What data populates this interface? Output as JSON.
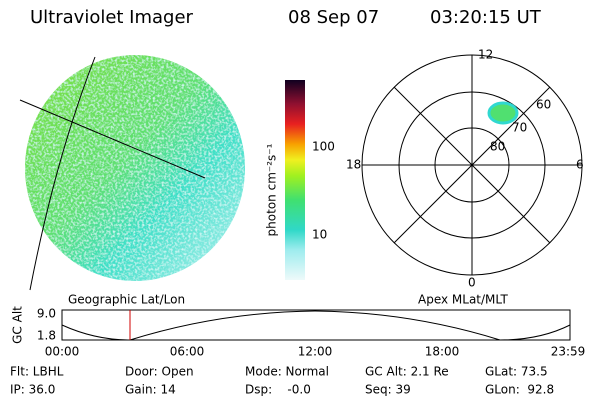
{
  "header": {
    "title": "Ultraviolet Imager",
    "date": "08 Sep 07",
    "time": "03:20:15 UT"
  },
  "colorbar": {
    "label": "photon cm⁻²s⁻¹",
    "ticks": [
      "100",
      "10"
    ]
  },
  "polar": {
    "top": "12",
    "bottom": "0",
    "left": "18",
    "right": "6",
    "rings": [
      "60",
      "70",
      "80"
    ]
  },
  "orbit": {
    "left_title": "Geographic Lat/Lon",
    "right_title": "Apex MLat/MLT",
    "y_label": "GC Alt",
    "yticks": [
      "9.0",
      "1.8"
    ],
    "xticks": [
      "00:00",
      "06:00",
      "12:00",
      "18:00",
      "23:59"
    ]
  },
  "footer": {
    "rows": [
      [
        "Flt: LBHL",
        "Door: Open",
        "Mode: Normal",
        "GC Alt: 2.1 Re",
        "GLat: 73.5"
      ],
      [
        "IP: 36.0",
        "Gain: 14",
        "Dsp:    -0.0",
        "Seq: 39",
        "GLon:  92.8"
      ]
    ]
  }
}
